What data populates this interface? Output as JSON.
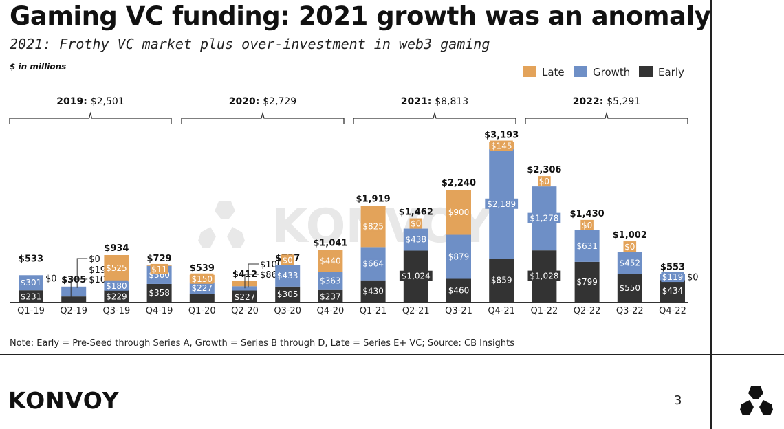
{
  "header": {
    "title": "Gaming VC funding: 2021 growth was an anomaly",
    "subtitle": "2021: Frothy VC market plus over-investment in web3 gaming",
    "units": "$ in millions"
  },
  "footer": {
    "note": "Note: Early = Pre-Seed through Series A, Growth = Series B through D, Late = Series E+ VC; Source: CB Insights",
    "brand": "KONVOY",
    "page_number": "3",
    "watermark": "KONVOY"
  },
  "colors": {
    "late": "#e3a35a",
    "growth": "#6e8fc6",
    "early": "#333333"
  },
  "year_groups": [
    {
      "year": "2019:",
      "total": "$2,501"
    },
    {
      "year": "2020:",
      "total": "$2,729"
    },
    {
      "year": "2021:",
      "total": "$8,813"
    },
    {
      "year": "2022:",
      "total": "$5,291"
    }
  ],
  "chart_data": {
    "type": "bar",
    "stacked": true,
    "categories": [
      "Q1-19",
      "Q2-19",
      "Q3-19",
      "Q4-19",
      "Q1-20",
      "Q2-20",
      "Q3-20",
      "Q4-20",
      "Q1-21",
      "Q2-21",
      "Q3-21",
      "Q4-21",
      "Q1-22",
      "Q2-22",
      "Q3-22",
      "Q4-22"
    ],
    "series": [
      {
        "name": "Early",
        "values": [
          231,
          108,
          229,
          358,
          162,
          227,
          305,
          237,
          430,
          1024,
          460,
          859,
          1028,
          799,
          550,
          434
        ]
      },
      {
        "name": "Growth",
        "values": [
          301,
          197,
          180,
          360,
          227,
          86,
          433,
          363,
          664,
          438,
          879,
          2189,
          1278,
          631,
          452,
          119
        ]
      },
      {
        "name": "Late",
        "values": [
          0,
          0,
          525,
          11,
          150,
          100,
          0,
          440,
          825,
          0,
          900,
          145,
          0,
          0,
          0,
          0
        ]
      }
    ],
    "totals": [
      "$533",
      "$305",
      "$934",
      "$729",
      "$539",
      "$412",
      "$737",
      "$1,041",
      "$1,919",
      "$1,462",
      "$2,240",
      "$3,193",
      "$2,306",
      "$1,430",
      "$1,002",
      "$553"
    ],
    "legend": [
      "Late",
      "Growth",
      "Early"
    ],
    "legend_position": "top-right",
    "ylim": [
      0,
      3300
    ],
    "grid": false
  }
}
